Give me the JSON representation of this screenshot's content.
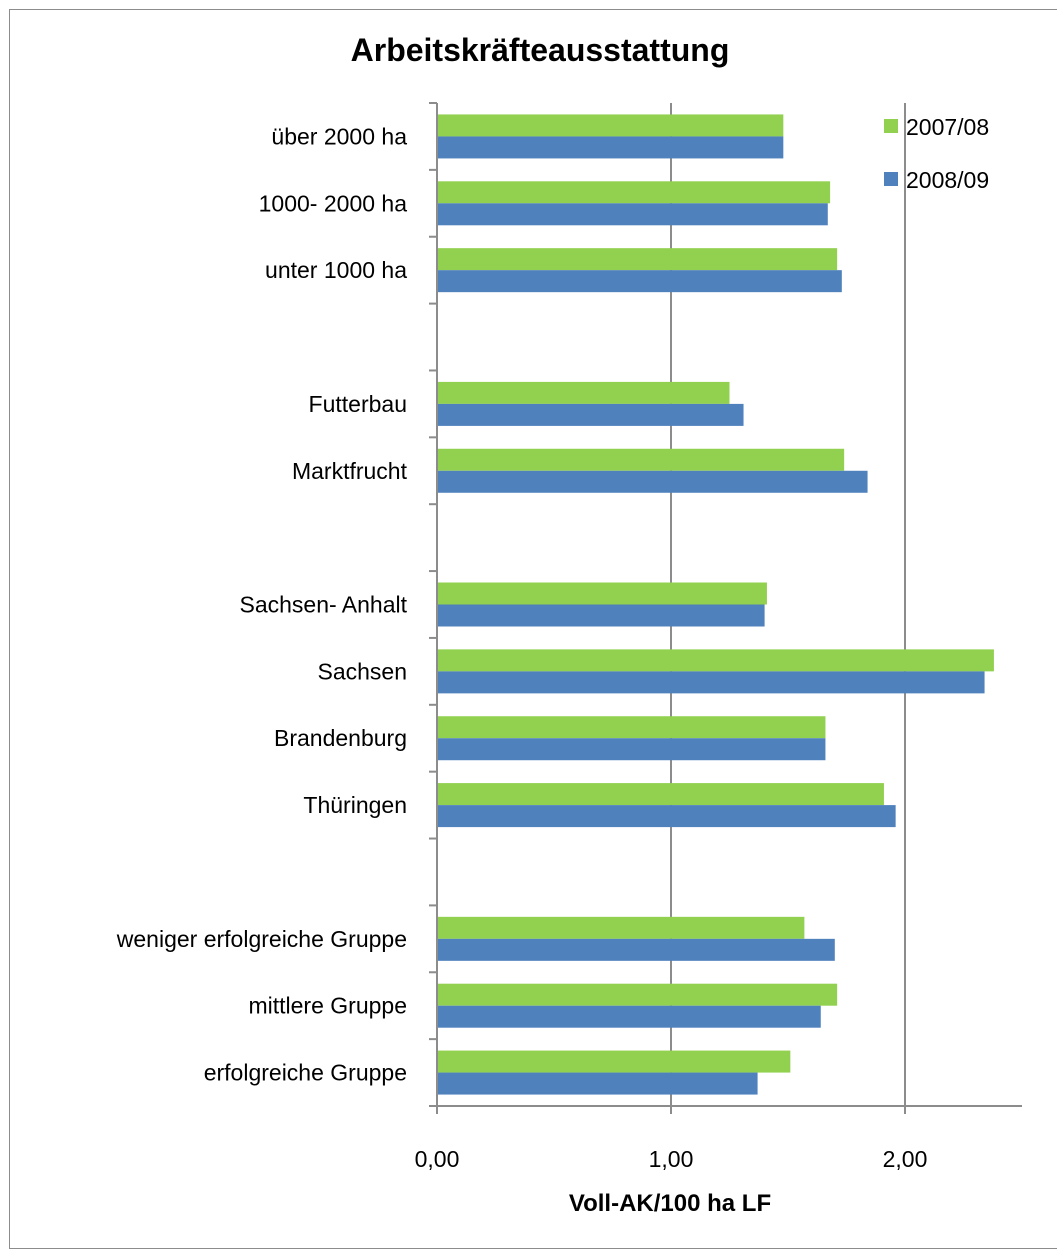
{
  "chart_data": {
    "type": "bar",
    "orientation": "horizontal",
    "title": "Arbeitskräfteausstattung",
    "xlabel": "Voll-AK/100 ha LF",
    "ylabel": "",
    "xlim": [
      0,
      2.5
    ],
    "xticks": [
      "0,00",
      "1,00",
      "2,00"
    ],
    "grid": true,
    "legend_position": "top-right",
    "categories": [
      "über 2000  ha",
      "1000- 2000  ha",
      "unter 1000  ha",
      "",
      "Futterbau",
      "Marktfrucht",
      "",
      "Sachsen- Anhalt",
      "Sachsen",
      "Brandenburg",
      "Thüringen",
      "",
      "weniger erfolgreiche Gruppe",
      "mittlere Gruppe",
      "erfolgreiche Gruppe"
    ],
    "series": [
      {
        "name": "2007/08",
        "color": "#92d050",
        "values": [
          1.48,
          1.68,
          1.71,
          null,
          1.25,
          1.74,
          null,
          1.41,
          2.38,
          1.66,
          1.91,
          null,
          1.57,
          1.71,
          1.51
        ]
      },
      {
        "name": "2008/09",
        "color": "#4f81bd",
        "values": [
          1.48,
          1.67,
          1.73,
          null,
          1.31,
          1.84,
          null,
          1.4,
          2.34,
          1.66,
          1.96,
          null,
          1.7,
          1.64,
          1.37
        ]
      }
    ]
  }
}
